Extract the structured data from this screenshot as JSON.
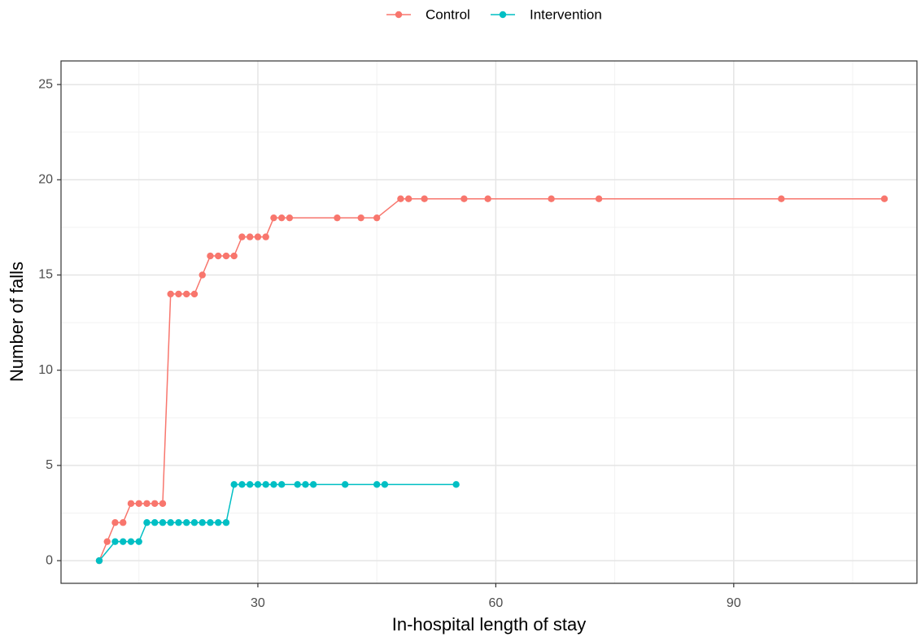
{
  "chart_data": {
    "type": "line",
    "x_label": "In-hospital length of stay",
    "y_label": "Number of falls",
    "legend_position": "top",
    "grid": true,
    "xlim": [
      5.18,
      113.1
    ],
    "ylim": [
      -1.19,
      26.24
    ],
    "xticks": [
      30,
      60,
      90
    ],
    "yticks": [
      0,
      5,
      10,
      15,
      20,
      25
    ],
    "x_minor_ticks": [
      15,
      45,
      75,
      105
    ],
    "y_minor_ticks": [
      2.5,
      7.5,
      12.5,
      17.5,
      22.5
    ],
    "series": [
      {
        "name": "Control",
        "color": "#F8766D",
        "x": [
          10,
          11,
          12,
          13,
          14,
          15,
          16,
          17,
          18,
          19,
          20,
          21,
          22,
          23,
          24,
          25,
          26,
          27,
          28,
          29,
          30,
          31,
          32,
          33,
          34,
          40,
          43,
          45,
          48,
          49,
          51,
          56,
          59,
          67,
          73,
          96,
          109
        ],
        "values": [
          0,
          1,
          2,
          2,
          3,
          3,
          3,
          3,
          3,
          14,
          14,
          14,
          14,
          15,
          16,
          16,
          16,
          16,
          17,
          17,
          17,
          17,
          18,
          18,
          18,
          18,
          18,
          18,
          19,
          19,
          19,
          19,
          19,
          19,
          19,
          19,
          19
        ]
      },
      {
        "name": "Intervention",
        "color": "#00BFC4",
        "x": [
          10,
          12,
          13,
          14,
          15,
          16,
          17,
          18,
          19,
          20,
          21,
          22,
          23,
          24,
          25,
          26,
          27,
          28,
          29,
          30,
          31,
          32,
          33,
          35,
          36,
          37,
          41,
          45,
          46,
          55
        ],
        "values": [
          0,
          1,
          1,
          1,
          1,
          2,
          2,
          2,
          2,
          2,
          2,
          2,
          2,
          2,
          2,
          2,
          4,
          4,
          4,
          4,
          4,
          4,
          4,
          4,
          4,
          4,
          4,
          4,
          4,
          4
        ]
      }
    ]
  }
}
